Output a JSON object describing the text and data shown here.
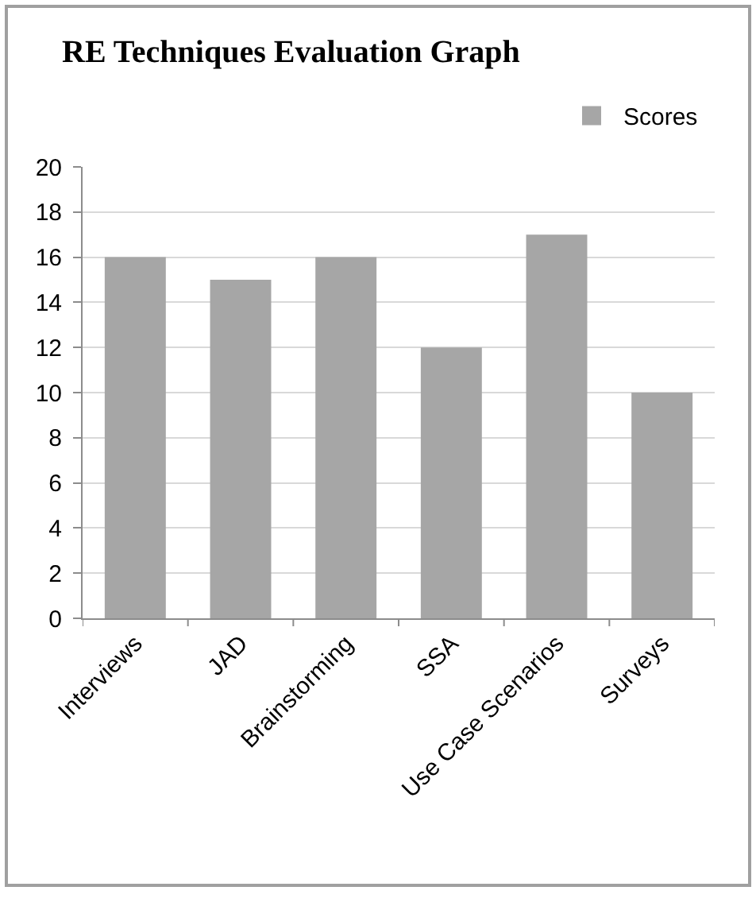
{
  "chart_data": {
    "type": "bar",
    "title": "RE Techniques Evaluation Graph",
    "categories": [
      "Interviews",
      "JAD",
      "Brainstorming",
      "SSA",
      "Use Case Scenarios",
      "Surveys"
    ],
    "series": [
      {
        "name": "Scores",
        "color": "#a6a6a6",
        "values": [
          16,
          15,
          16,
          12,
          17,
          10
        ]
      }
    ],
    "ylim": [
      0,
      20
    ],
    "yticks": [
      0,
      2,
      4,
      6,
      8,
      10,
      12,
      14,
      16,
      18,
      20
    ],
    "grid": "y",
    "legend": "top right"
  }
}
